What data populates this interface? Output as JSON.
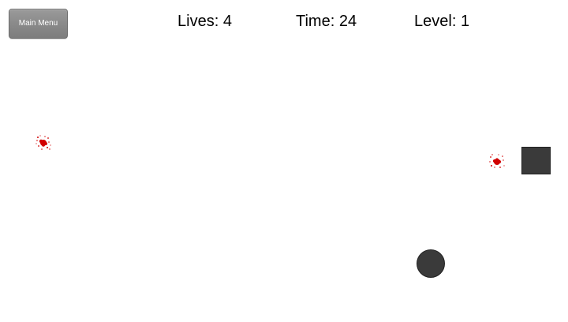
{
  "menu": {
    "main_menu_label": "Main Menu"
  },
  "hud": {
    "lives_label": "Lives: ",
    "lives_value": "4",
    "time_label": "Time: ",
    "time_value": "24",
    "level_label": "Level: ",
    "level_value": "1"
  },
  "sprites": {
    "splat_icon": "blood-splat-icon",
    "splat_color": "#d10000",
    "square_color": "#3a3a3a",
    "ball_color": "#3a3a3a"
  }
}
